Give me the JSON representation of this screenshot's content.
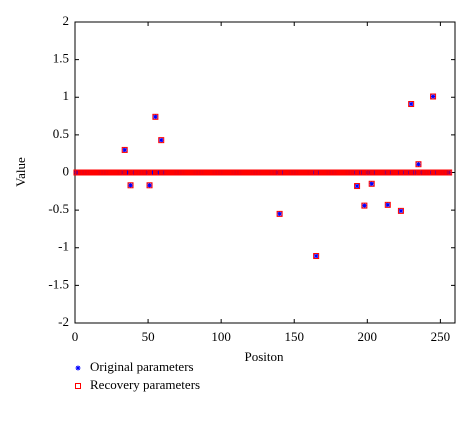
{
  "chart_data": {
    "type": "scatter",
    "xlabel": "Positon",
    "ylabel": "Value",
    "x": [
      1,
      2,
      3,
      4,
      5,
      6,
      7,
      8,
      9,
      10,
      11,
      12,
      13,
      14,
      15,
      16,
      17,
      18,
      19,
      20,
      21,
      22,
      23,
      24,
      25,
      26,
      27,
      28,
      29,
      30,
      31,
      32,
      33,
      34,
      35,
      36,
      37,
      38,
      39,
      40,
      41,
      42,
      43,
      44,
      45,
      46,
      47,
      48,
      49,
      50,
      51,
      52,
      53,
      54,
      55,
      56,
      57,
      58,
      59,
      60,
      61,
      62,
      63,
      64,
      65,
      66,
      67,
      68,
      69,
      70,
      71,
      72,
      73,
      74,
      75,
      76,
      77,
      78,
      79,
      80,
      81,
      82,
      83,
      84,
      85,
      86,
      87,
      88,
      89,
      90,
      91,
      92,
      93,
      94,
      95,
      96,
      97,
      98,
      99,
      100,
      101,
      102,
      103,
      104,
      105,
      106,
      107,
      108,
      109,
      110,
      111,
      112,
      113,
      114,
      115,
      116,
      117,
      118,
      119,
      120,
      121,
      122,
      123,
      124,
      125,
      126,
      127,
      128,
      129,
      130,
      131,
      132,
      133,
      134,
      135,
      136,
      137,
      138,
      139,
      140,
      141,
      142,
      143,
      144,
      145,
      146,
      147,
      148,
      149,
      150,
      151,
      152,
      153,
      154,
      155,
      156,
      157,
      158,
      159,
      160,
      161,
      162,
      163,
      164,
      165,
      166,
      167,
      168,
      169,
      170,
      171,
      172,
      173,
      174,
      175,
      176,
      177,
      178,
      179,
      180,
      181,
      182,
      183,
      184,
      185,
      186,
      187,
      188,
      189,
      190,
      191,
      192,
      193,
      194,
      195,
      196,
      197,
      198,
      199,
      200,
      201,
      202,
      203,
      204,
      205,
      206,
      207,
      208,
      209,
      210,
      211,
      212,
      213,
      214,
      215,
      216,
      217,
      218,
      219,
      220,
      221,
      222,
      223,
      224,
      225,
      226,
      227,
      228,
      229,
      230,
      231,
      232,
      233,
      234,
      235,
      236,
      237,
      238,
      239,
      240,
      241,
      242,
      243,
      244,
      245,
      246,
      247,
      248,
      249,
      250,
      251,
      252,
      253,
      254,
      255,
      256
    ],
    "series": [
      {
        "name": "Original parameters",
        "color": "#0000ff",
        "marker": "asterisk",
        "values": [
          0,
          0,
          0,
          0,
          0,
          0,
          0,
          0,
          0,
          0,
          0,
          0,
          0,
          0,
          0,
          0,
          0,
          0,
          0,
          0,
          0,
          0,
          0,
          0,
          0,
          0,
          0,
          0,
          0,
          0,
          0,
          0,
          0,
          0.3,
          0,
          0,
          0,
          -0.17,
          0,
          0,
          0,
          0,
          0,
          0,
          0,
          0,
          0,
          0,
          0,
          0,
          -0.17,
          0,
          0,
          0,
          0.74,
          0,
          0,
          0,
          0.43,
          0,
          0,
          0,
          0,
          0,
          0,
          0,
          0,
          0,
          0,
          0,
          0,
          0,
          0,
          0,
          0,
          0,
          0,
          0,
          0,
          0,
          0,
          0,
          0,
          0,
          0,
          0,
          0,
          0,
          0,
          0,
          0,
          0,
          0,
          0,
          0,
          0,
          0,
          0,
          0,
          0,
          0,
          0,
          0,
          0,
          0,
          0,
          0,
          0,
          0,
          0,
          0,
          0,
          0,
          0,
          0,
          0,
          0,
          0,
          0,
          0,
          0,
          0,
          0,
          0,
          0,
          0,
          0,
          0,
          0,
          0,
          0,
          0,
          0,
          0,
          0,
          0,
          0,
          0,
          0,
          -0.55,
          0,
          0,
          0,
          0,
          0,
          0,
          0,
          0,
          0,
          0,
          0,
          0,
          0,
          0,
          0,
          0,
          0,
          0,
          0,
          0,
          0,
          0,
          0,
          0,
          -1.11,
          0,
          0,
          0,
          0,
          0,
          0,
          0,
          0,
          0,
          0,
          0,
          0,
          0,
          0,
          0,
          0,
          0,
          0,
          0,
          0,
          0,
          0,
          0,
          0,
          0,
          0,
          0,
          -0.18,
          0,
          0,
          0,
          0,
          -0.44,
          0,
          0,
          0,
          0,
          -0.15,
          0,
          0,
          0,
          0,
          0,
          0,
          0,
          0,
          0,
          0,
          -0.43,
          0,
          0,
          0,
          0,
          0,
          0,
          0,
          0,
          -0.51,
          0,
          0,
          0,
          0,
          0,
          0,
          0.91,
          0,
          0,
          0,
          0,
          0.11,
          0,
          0,
          0,
          0,
          0,
          0,
          0,
          0,
          0,
          1.01,
          0,
          0,
          0,
          0,
          0,
          0,
          0,
          0,
          0,
          0,
          0
        ]
      },
      {
        "name": "Recovery parameters",
        "color": "#ff0000",
        "marker": "square",
        "values": [
          0,
          0,
          0,
          0,
          0,
          0,
          0,
          0,
          0,
          0,
          0,
          0,
          0,
          0,
          0,
          0,
          0,
          0,
          0,
          0,
          0,
          0,
          0,
          0,
          0,
          0,
          0,
          0,
          0,
          0,
          0,
          0,
          0,
          0.3,
          0,
          0,
          0,
          -0.17,
          0,
          0,
          0,
          0,
          0,
          0,
          0,
          0,
          0,
          0,
          0,
          0,
          -0.17,
          0,
          0,
          0,
          0.74,
          0,
          0,
          0,
          0.43,
          0,
          0,
          0,
          0,
          0,
          0,
          0,
          0,
          0,
          0,
          0,
          0,
          0,
          0,
          0,
          0,
          0,
          0,
          0,
          0,
          0,
          0,
          0,
          0,
          0,
          0,
          0,
          0,
          0,
          0,
          0,
          0,
          0,
          0,
          0,
          0,
          0,
          0,
          0,
          0,
          0,
          0,
          0,
          0,
          0,
          0,
          0,
          0,
          0,
          0,
          0,
          0,
          0,
          0,
          0,
          0,
          0,
          0,
          0,
          0,
          0,
          0,
          0,
          0,
          0,
          0,
          0,
          0,
          0,
          0,
          0,
          0,
          0,
          0,
          0,
          0,
          0,
          0,
          0,
          0,
          -0.55,
          0,
          0,
          0,
          0,
          0,
          0,
          0,
          0,
          0,
          0,
          0,
          0,
          0,
          0,
          0,
          0,
          0,
          0,
          0,
          0,
          0,
          0,
          0,
          0,
          -1.11,
          0,
          0,
          0,
          0,
          0,
          0,
          0,
          0,
          0,
          0,
          0,
          0,
          0,
          0,
          0,
          0,
          0,
          0,
          0,
          0,
          0,
          0,
          0,
          0,
          0,
          0,
          0,
          -0.18,
          0,
          0,
          0,
          0,
          -0.44,
          0,
          0,
          0,
          0,
          -0.15,
          0,
          0,
          0,
          0,
          0,
          0,
          0,
          0,
          0,
          0,
          -0.43,
          0,
          0,
          0,
          0,
          0,
          0,
          0,
          0,
          -0.51,
          0,
          0,
          0,
          0,
          0,
          0,
          0.91,
          0,
          0,
          0,
          0,
          0.11,
          0,
          0,
          0,
          0,
          0,
          0,
          0,
          0,
          0,
          1.01,
          0,
          0,
          0,
          0,
          0,
          0,
          0,
          0,
          0,
          0,
          0
        ]
      }
    ],
    "xlim": [
      0,
      260
    ],
    "xticks": [
      0,
      50,
      100,
      150,
      200,
      250
    ],
    "ylim": [
      -2,
      2
    ],
    "yticks": [
      -2,
      -1.5,
      -1,
      -0.5,
      0,
      0.5,
      1,
      1.5,
      2
    ],
    "grid": false,
    "legend": "below"
  }
}
